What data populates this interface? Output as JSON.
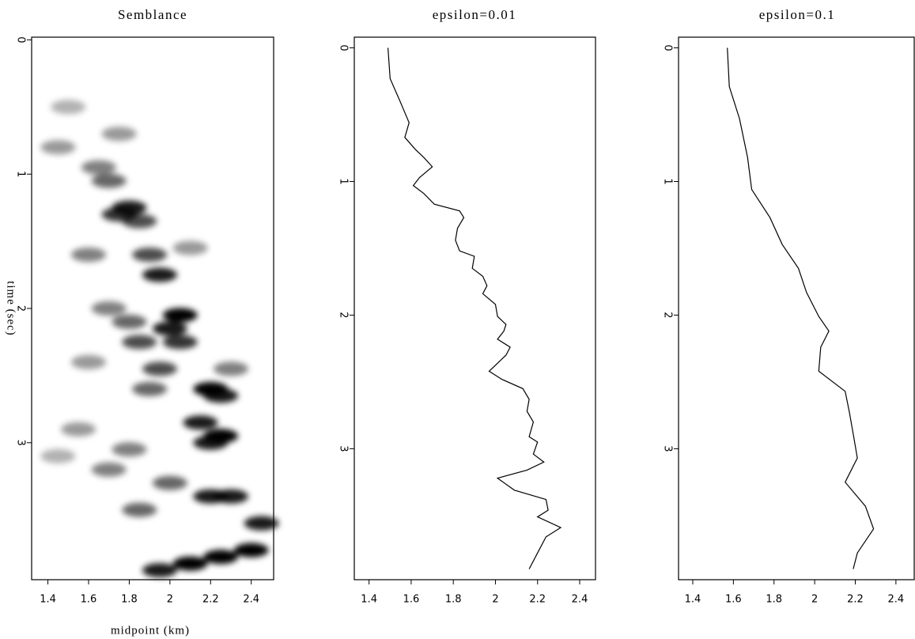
{
  "chart_data": [
    {
      "type": "heatmap",
      "title": "Semblance",
      "xlabel": "midpoint (km)",
      "ylabel": "time (sec)",
      "xlim": [
        1.32,
        2.51
      ],
      "ylim": [
        -0.02,
        4.02
      ],
      "xticks": [
        1.4,
        1.6,
        1.8,
        2,
        2.2,
        2.4
      ],
      "yticks": [
        0,
        1,
        2,
        3
      ],
      "color": "#000000",
      "x": [
        1.75,
        1.8,
        1.85,
        1.9,
        1.95,
        2.05,
        2.0,
        2.05,
        2.2,
        2.25,
        2.15,
        2.25,
        2.2,
        2.2,
        2.3,
        2.45,
        2.25,
        2.4,
        2.1,
        1.95,
        1.7,
        1.65,
        1.5,
        1.45,
        1.6,
        1.7,
        1.8,
        1.85,
        1.6,
        1.9,
        1.55,
        1.8,
        1.7,
        1.85,
        2.0,
        1.45,
        2.1,
        2.3,
        1.75,
        1.95
      ],
      "y": [
        1.3,
        1.25,
        1.35,
        1.6,
        1.75,
        2.05,
        2.15,
        2.25,
        2.6,
        2.65,
        2.85,
        2.95,
        3.0,
        3.4,
        3.4,
        3.6,
        3.85,
        3.8,
        3.9,
        3.95,
        1.05,
        0.95,
        0.5,
        0.8,
        1.6,
        2.0,
        2.1,
        2.25,
        2.4,
        2.6,
        2.9,
        3.05,
        3.2,
        3.5,
        3.3,
        3.1,
        1.55,
        2.45,
        0.7,
        2.45
      ],
      "values": [
        0.8,
        0.9,
        0.7,
        0.7,
        0.9,
        1,
        0.9,
        0.8,
        1,
        0.9,
        0.9,
        1,
        0.9,
        0.9,
        0.9,
        0.9,
        1,
        1,
        1,
        0.9,
        0.6,
        0.5,
        0.3,
        0.4,
        0.5,
        0.5,
        0.6,
        0.7,
        0.4,
        0.6,
        0.4,
        0.5,
        0.5,
        0.6,
        0.6,
        0.3,
        0.4,
        0.5,
        0.4,
        0.7
      ]
    },
    {
      "type": "line",
      "title": "epsilon=0.01",
      "xlim": [
        1.33,
        2.475
      ],
      "ylim": [
        -0.08,
        3.98
      ],
      "xticks": [
        1.4,
        1.6,
        1.8,
        2,
        2.2,
        2.4
      ],
      "yticks": [
        0,
        1,
        2,
        3
      ],
      "color": "#000000",
      "x": [
        1.49,
        1.5,
        1.55,
        1.59,
        1.57,
        1.62,
        1.66,
        1.7,
        1.64,
        1.61,
        1.66,
        1.71,
        1.83,
        1.85,
        1.82,
        1.81,
        1.83,
        1.9,
        1.89,
        1.94,
        1.96,
        1.94,
        2.0,
        2.01,
        2.05,
        2.04,
        2.01,
        2.07,
        2.05,
        2.01,
        1.97,
        2.03,
        2.13,
        2.16,
        2.15,
        2.18,
        2.16,
        2.2,
        2.18,
        2.23,
        2.15,
        2.01,
        2.09,
        2.24,
        2.25,
        2.2,
        2.31,
        2.24,
        2.2,
        2.16
      ],
      "y": [
        0,
        0.23,
        0.41,
        0.56,
        0.67,
        0.76,
        0.82,
        0.89,
        0.97,
        1.03,
        1.09,
        1.17,
        1.22,
        1.27,
        1.35,
        1.44,
        1.52,
        1.56,
        1.65,
        1.71,
        1.78,
        1.84,
        1.92,
        2.01,
        2.07,
        2.12,
        2.18,
        2.24,
        2.3,
        2.36,
        2.42,
        2.48,
        2.55,
        2.63,
        2.72,
        2.8,
        2.91,
        2.95,
        3.04,
        3.1,
        3.16,
        3.22,
        3.31,
        3.38,
        3.46,
        3.51,
        3.59,
        3.66,
        3.78,
        3.9
      ]
    },
    {
      "type": "line",
      "title": "epsilon=0.1",
      "xlim": [
        1.33,
        2.49
      ],
      "ylim": [
        -0.08,
        3.98
      ],
      "xticks": [
        1.4,
        1.6,
        1.8,
        2,
        2.2,
        2.4
      ],
      "yticks": [
        0,
        1,
        2,
        3
      ],
      "color": "#000000",
      "x": [
        1.57,
        1.58,
        1.63,
        1.67,
        1.69,
        1.78,
        1.84,
        1.92,
        1.96,
        2.02,
        2.07,
        2.03,
        2.02,
        2.15,
        2.17,
        2.19,
        2.21,
        2.15,
        2.25,
        2.29,
        2.21,
        2.19
      ],
      "y": [
        0,
        0.29,
        0.53,
        0.82,
        1.06,
        1.27,
        1.47,
        1.65,
        1.83,
        2.01,
        2.12,
        2.24,
        2.42,
        2.57,
        2.72,
        2.89,
        3.07,
        3.25,
        3.43,
        3.6,
        3.78,
        3.9
      ]
    }
  ]
}
